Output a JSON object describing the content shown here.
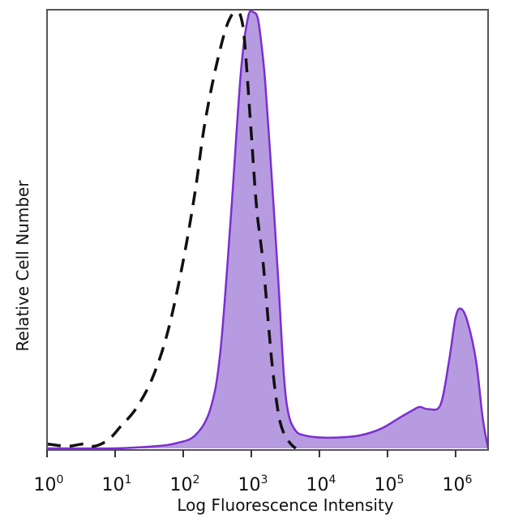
{
  "chart_data": {
    "type": "area",
    "xlabel": "Log Fluorescence Intensity",
    "ylabel": "Relative Cell Number",
    "x_scale": "log",
    "xlim": [
      1,
      3000000
    ],
    "ylim": [
      0,
      1
    ],
    "grid": false,
    "legend": "none",
    "x_ticks": [
      {
        "base": "10",
        "exp": "0",
        "value": 1
      },
      {
        "base": "10",
        "exp": "1",
        "value": 10
      },
      {
        "base": "10",
        "exp": "2",
        "value": 100
      },
      {
        "base": "10",
        "exp": "3",
        "value": 1000
      },
      {
        "base": "10",
        "exp": "4",
        "value": 10000
      },
      {
        "base": "10",
        "exp": "5",
        "value": 100000
      },
      {
        "base": "10",
        "exp": "6",
        "value": 1000000
      }
    ],
    "series": [
      {
        "style": "dashed",
        "color": "#111111",
        "x": [
          1,
          2,
          3.5,
          5,
          8,
          12,
          20,
          35,
          60,
          100,
          150,
          200,
          280,
          400,
          500,
          600,
          700,
          800,
          1000,
          1200,
          1500,
          2000,
          2500,
          3000,
          3800,
          4500
        ],
        "y": [
          0.01,
          0.005,
          0.01,
          0.005,
          0.02,
          0.05,
          0.09,
          0.16,
          0.27,
          0.43,
          0.59,
          0.73,
          0.85,
          0.95,
          0.99,
          1.0,
          0.99,
          0.93,
          0.72,
          0.55,
          0.42,
          0.2,
          0.08,
          0.035,
          0.01,
          0.0
        ]
      },
      {
        "style": "filled",
        "color": "#7b2fcf",
        "fill": "#b79be0",
        "x": [
          1,
          10,
          40,
          80,
          150,
          250,
          350,
          500,
          700,
          900,
          1100,
          1250,
          1400,
          1600,
          2000,
          2500,
          3000,
          3500,
          4500,
          6000,
          10000,
          20000,
          40000,
          80000,
          150000,
          250000,
          300000,
          400000,
          600000,
          800000,
          1000000,
          1200000,
          1500000,
          2000000,
          2500000,
          3000000
        ],
        "y": [
          0.0,
          0.0,
          0.005,
          0.012,
          0.03,
          0.09,
          0.22,
          0.53,
          0.86,
          0.99,
          0.999,
          0.985,
          0.93,
          0.84,
          0.62,
          0.38,
          0.17,
          0.08,
          0.04,
          0.03,
          0.025,
          0.025,
          0.03,
          0.045,
          0.07,
          0.09,
          0.095,
          0.09,
          0.1,
          0.2,
          0.3,
          0.32,
          0.29,
          0.2,
          0.07,
          0.0
        ]
      }
    ]
  }
}
